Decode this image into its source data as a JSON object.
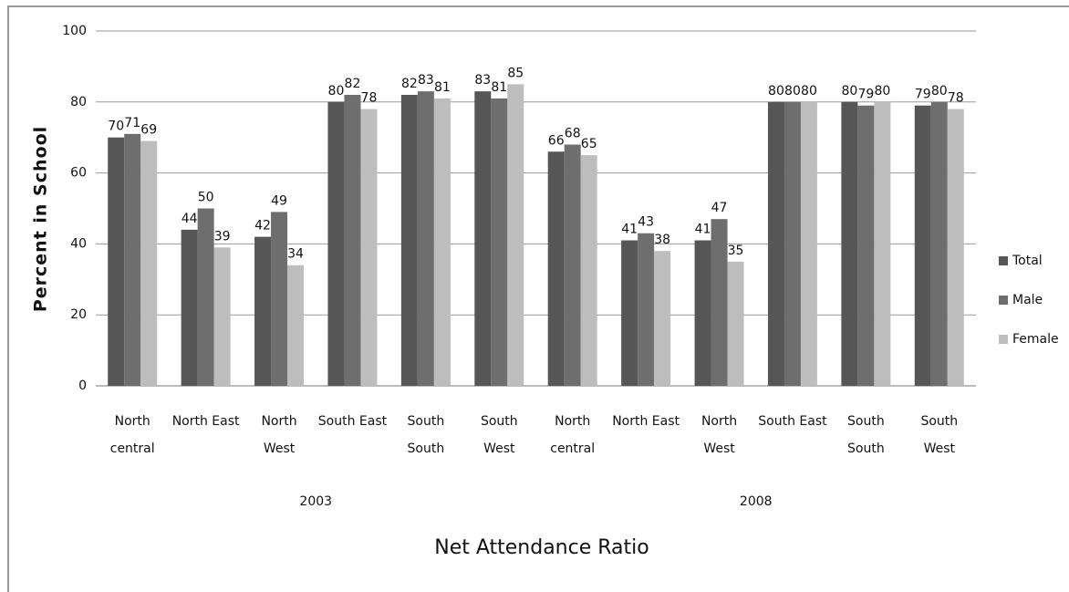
{
  "chart_data": {
    "type": "bar",
    "y_label": "Percent in School",
    "x_label": "Net Attendance  Ratio",
    "categories": [
      "North central",
      "North East",
      "North West",
      "South East",
      "South South",
      "South West",
      "North central",
      "North East",
      "North West",
      "South East",
      "South South",
      "South West"
    ],
    "groups": [
      "2003",
      "2008"
    ],
    "series": [
      {
        "name": "Total",
        "color": "#565656",
        "values": [
          70,
          44,
          42,
          80,
          82,
          83,
          66,
          41,
          41,
          80,
          80,
          79
        ]
      },
      {
        "name": "Male",
        "color": "#6e6e6e",
        "values": [
          71,
          50,
          49,
          82,
          83,
          81,
          68,
          43,
          47,
          80,
          79,
          80
        ]
      },
      {
        "name": "Female",
        "color": "#bdbdbd",
        "values": [
          69,
          39,
          34,
          78,
          81,
          85,
          65,
          38,
          35,
          80,
          80,
          78
        ]
      }
    ],
    "ylim": [
      0,
      100
    ],
    "yticks": [
      0,
      20,
      40,
      60,
      80,
      100
    ],
    "grid": true
  }
}
